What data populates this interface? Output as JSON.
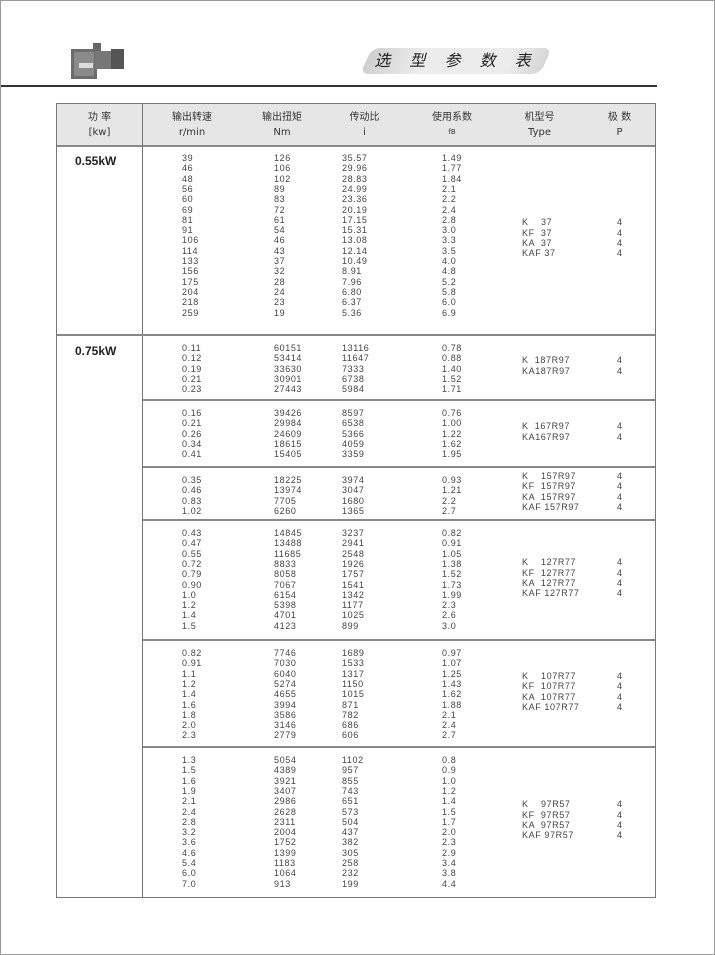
{
  "header": {
    "title": "选 型 参 数 表"
  },
  "columns": [
    {
      "top": "功  率",
      "bottom": "[kw]"
    },
    {
      "top": "输出转速",
      "bottom": "r/min"
    },
    {
      "top": "输出扭矩",
      "bottom": "Nm"
    },
    {
      "top": "传动比",
      "bottom": "i"
    },
    {
      "top": "使用系数",
      "bottom": "fB"
    },
    {
      "top": "机型号",
      "bottom": "Type"
    },
    {
      "top": "极  数",
      "bottom": "P"
    }
  ],
  "sections": [
    {
      "power": "0.55kW",
      "groups": [
        {
          "rows": [
            [
              "39",
              "126",
              "35.57",
              "1.49"
            ],
            [
              "46",
              "106",
              "29.96",
              "1.77"
            ],
            [
              "48",
              "102",
              "28.83",
              "1.84"
            ],
            [
              "56",
              "89",
              "24.99",
              "2.1"
            ],
            [
              "60",
              "83",
              "23.36",
              "2.2"
            ],
            [
              "69",
              "72",
              "20.19",
              "2.4"
            ],
            [
              "81",
              "61",
              "17.15",
              "2.8"
            ],
            [
              "91",
              "54",
              "15.31",
              "3.0"
            ],
            [
              "106",
              "46",
              "13.08",
              "3.3"
            ],
            [
              "114",
              "43",
              "12.14",
              "3.5"
            ],
            [
              "133",
              "37",
              "10.49",
              "4.0"
            ],
            [
              "156",
              "32",
              "8.91",
              "4.8"
            ],
            [
              "175",
              "28",
              "7.96",
              "5.2"
            ],
            [
              "204",
              "24",
              "6.80",
              "5.8"
            ],
            [
              "218",
              "23",
              "6.37",
              "6.0"
            ],
            [
              "259",
              "19",
              "5.36",
              "6.9"
            ]
          ],
          "types": [
            [
              "K    37",
              "4"
            ],
            [
              "KF  37",
              "4"
            ],
            [
              "KA  37",
              "4"
            ],
            [
              "KAF 37",
              "4"
            ]
          ]
        }
      ]
    },
    {
      "power": "0.75kW",
      "groups": [
        {
          "rows": [
            [
              "0.11",
              "60151",
              "13116",
              "0.78"
            ],
            [
              "0.12",
              "53414",
              "11647",
              "0.88"
            ],
            [
              "0.19",
              "33630",
              "7333",
              "1.40"
            ],
            [
              "0.21",
              "30901",
              "6738",
              "1.52"
            ],
            [
              "0.23",
              "27443",
              "5984",
              "1.71"
            ]
          ],
          "types": [
            [
              "K  187R97",
              "4"
            ],
            [
              "KA187R97",
              "4"
            ]
          ]
        },
        {
          "rows": [
            [
              "0.16",
              "39426",
              "8597",
              "0.76"
            ],
            [
              "0.21",
              "29984",
              "6538",
              "1.00"
            ],
            [
              "0.26",
              "24609",
              "5366",
              "1.22"
            ],
            [
              "0.34",
              "18615",
              "4059",
              "1.62"
            ],
            [
              "0.41",
              "15405",
              "3359",
              "1.95"
            ]
          ],
          "types": [
            [
              "K  167R97",
              "4"
            ],
            [
              "KA167R97",
              "4"
            ]
          ]
        },
        {
          "rows": [
            [
              "0.35",
              "18225",
              "3974",
              "0.93"
            ],
            [
              "0.46",
              "13974",
              "3047",
              "1.21"
            ],
            [
              "0.83",
              "7705",
              "1680",
              "2.2"
            ],
            [
              "1.02",
              "6260",
              "1365",
              "2.7"
            ]
          ],
          "types": [
            [
              "K    157R97",
              "4"
            ],
            [
              "KF  157R97",
              "4"
            ],
            [
              "KA  157R97",
              "4"
            ],
            [
              "KAF 157R97",
              "4"
            ]
          ]
        },
        {
          "rows": [
            [
              "0.43",
              "14845",
              "3237",
              "0.82"
            ],
            [
              "0.47",
              "13488",
              "2941",
              "0.91"
            ],
            [
              "0.55",
              "11685",
              "2548",
              "1.05"
            ],
            [
              "0.72",
              "8833",
              "1926",
              "1.38"
            ],
            [
              "0.79",
              "8058",
              "1757",
              "1.52"
            ],
            [
              "0.90",
              "7067",
              "1541",
              "1.73"
            ],
            [
              "1.0",
              "6154",
              "1342",
              "1.99"
            ],
            [
              "1.2",
              "5398",
              "1177",
              "2.3"
            ],
            [
              "1.4",
              "4701",
              "1025",
              "2.6"
            ],
            [
              "1.5",
              "4123",
              "899",
              "3.0"
            ]
          ],
          "types": [
            [
              "K    127R77",
              "4"
            ],
            [
              "KF  127R77",
              "4"
            ],
            [
              "KA  127R77",
              "4"
            ],
            [
              "KAF 127R77",
              "4"
            ]
          ]
        },
        {
          "rows": [
            [
              "0.82",
              "7746",
              "1689",
              "0.97"
            ],
            [
              "0.91",
              "7030",
              "1533",
              "1.07"
            ],
            [
              "1.1",
              "6040",
              "1317",
              "1.25"
            ],
            [
              "1.2",
              "5274",
              "1150",
              "1.43"
            ],
            [
              "1.4",
              "4655",
              "1015",
              "1.62"
            ],
            [
              "1.6",
              "3994",
              "871",
              "1.88"
            ],
            [
              "1.8",
              "3586",
              "782",
              "2.1"
            ],
            [
              "2.0",
              "3146",
              "686",
              "2.4"
            ],
            [
              "2.3",
              "2779",
              "606",
              "2.7"
            ]
          ],
          "types": [
            [
              "K    107R77",
              "4"
            ],
            [
              "KF  107R77",
              "4"
            ],
            [
              "KA  107R77",
              "4"
            ],
            [
              "KAF 107R77",
              "4"
            ]
          ]
        },
        {
          "rows": [
            [
              "1.3",
              "5054",
              "1102",
              "0.8"
            ],
            [
              "1.5",
              "4389",
              "957",
              "0.9"
            ],
            [
              "1.6",
              "3921",
              "855",
              "1.0"
            ],
            [
              "1.9",
              "3407",
              "743",
              "1.2"
            ],
            [
              "2.1",
              "2986",
              "651",
              "1.4"
            ],
            [
              "2.4",
              "2628",
              "573",
              "1.5"
            ],
            [
              "2.8",
              "2311",
              "504",
              "1.7"
            ],
            [
              "3.2",
              "2004",
              "437",
              "2.0"
            ],
            [
              "3.6",
              "1752",
              "382",
              "2.3"
            ],
            [
              "4.6",
              "1399",
              "305",
              "2.9"
            ],
            [
              "5.4",
              "1183",
              "258",
              "3.4"
            ],
            [
              "6.0",
              "1064",
              "232",
              "3.8"
            ],
            [
              "7.0",
              "913",
              "199",
              "4.4"
            ]
          ],
          "types": [
            [
              "K    97R57",
              "4"
            ],
            [
              "KF  97R57",
              "4"
            ],
            [
              "KA  97R57",
              "4"
            ],
            [
              "KAF 97R57",
              "4"
            ]
          ]
        }
      ]
    }
  ]
}
